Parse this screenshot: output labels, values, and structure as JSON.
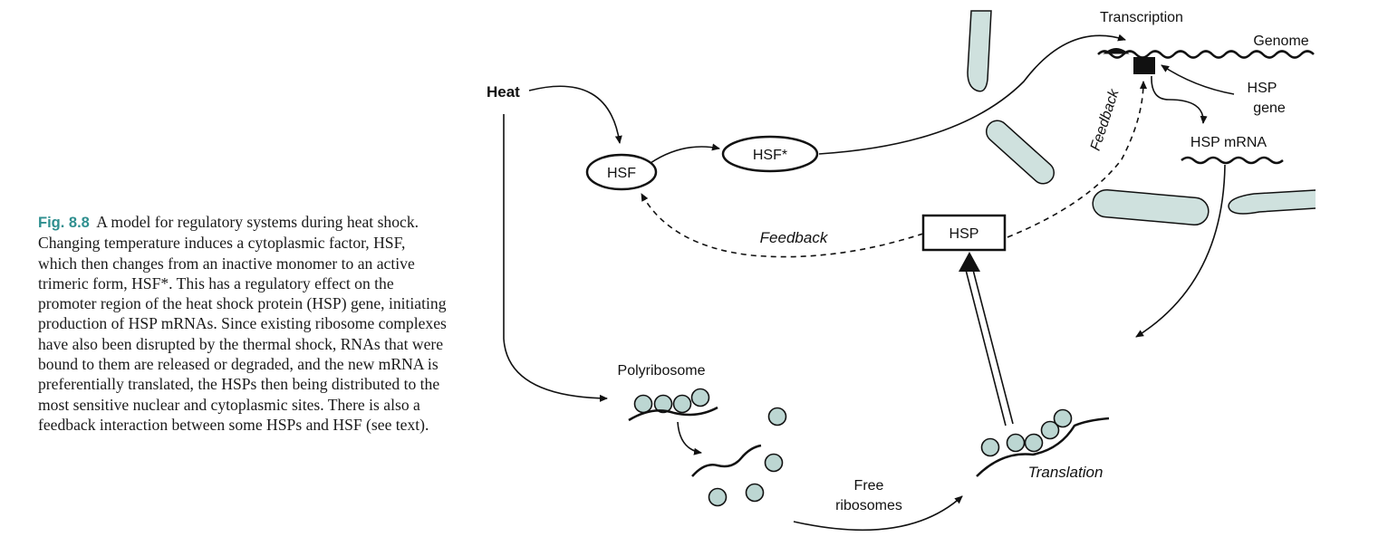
{
  "caption": {
    "label": "Fig. 8.8",
    "text": "A model for regulatory systems during heat shock. Changing temperature induces a cytoplasmic factor, HSF, which then changes from an inactive monomer to an active trimeric form, HSF*. This has a regulatory effect on the promoter region of the heat shock protein (HSP) gene, initiating production of HSP mRNAs. Since existing ribosome complexes have also been disrupted by the thermal shock, RNAs that were bound to them are released or degraded, and the new mRNA is preferentially translated, the HSPs then being distributed to the most sensitive nuclear and cytoplasmic sites. There is also a feedback interaction between some HSPs and HSF (see text)."
  },
  "diagram": {
    "heat": "Heat",
    "hsf": "HSF",
    "hsf_star": "HSF*",
    "hsp": "HSP",
    "transcription": "Transcription",
    "genome": "Genome",
    "hsp_gene_line1": "HSP",
    "hsp_gene_line2": "gene",
    "hsp_mrna": "HSP mRNA",
    "feedback_lower": "Feedback",
    "feedback_upper": "Feedback",
    "polyribosome": "Polyribosome",
    "free_ribosomes_line1": "Free",
    "free_ribosomes_line2": "ribosomes",
    "translation": "Translation"
  },
  "colors": {
    "figure_label": "#2f8f8f",
    "organelle_fill": "#cfe1de",
    "ribosome_fill": "#bcd6d2",
    "stroke": "#111111"
  }
}
